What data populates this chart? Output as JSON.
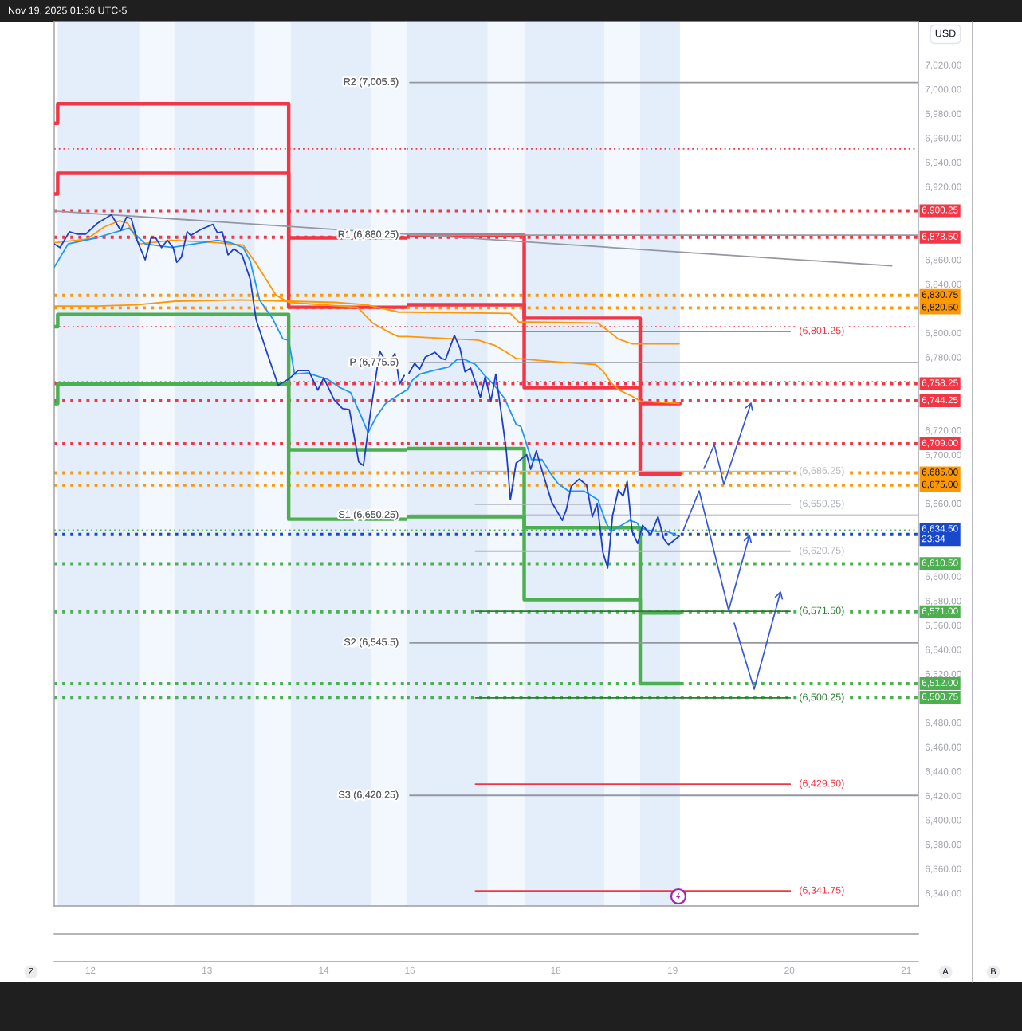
{
  "chart_data": [
    {
      "type": "line",
      "annotations": [
        "Nov 19, 2025 01:36 UTC-5",
        "Z",
        "A",
        "B"
      ],
      "xlim": [
        11.69,
        14.71
      ],
      "xticks": [
        12,
        13,
        14
      ],
      "ylim": [
        6329.5,
        7055.6
      ],
      "tick_labels": "x",
      "series": [
        {
          "color": "#1e3ec8",
          "x": [
            11.69,
            11.74,
            11.82,
            11.89,
            11.96,
            12.06,
            12.18,
            12.26,
            12.31,
            12.35,
            12.4,
            12.47,
            12.52,
            12.56,
            12.61,
            12.66,
            12.71,
            12.74,
            12.78,
            12.83,
            12.86,
            12.95,
            13.05,
            13.09,
            13.13,
            13.18,
            13.23,
            13.3,
            13.37,
            13.42,
            13.52,
            13.61,
            13.7,
            13.78,
            13.87,
            13.95,
            14.0,
            14.09,
            14.16,
            14.22,
            14.3,
            14.34,
            14.4,
            14.48,
            14.55,
            14.61,
            14.65,
            14.69
          ],
          "values": [
            6873,
            6870,
            6883,
            6881,
            6881,
            6890,
            6897,
            6884,
            6895,
            6894,
            6876,
            6860,
            6878,
            6878,
            6870,
            6876,
            6870,
            6858,
            6862,
            6883,
            6880,
            6885,
            6889,
            6882,
            6883,
            6864,
            6869,
            6864,
            6844,
            6811,
            6782,
            6757,
            6762,
            6769,
            6769,
            6753,
            6763,
            6745,
            6738,
            6737,
            6694,
            6691,
            6734,
            6785,
            6774,
            6783,
            6758,
            6765
          ]
        },
        {
          "color": "#2196f3",
          "x": [
            11.69,
            11.81,
            12.05,
            12.33,
            12.47,
            12.7,
            12.89,
            13.09,
            13.2,
            13.31,
            13.37,
            13.45,
            13.56,
            13.65,
            13.7,
            13.75,
            13.86,
            14.03,
            14.14,
            14.23,
            14.31,
            14.38,
            14.45,
            14.53,
            14.64,
            14.71
          ],
          "values": [
            6854,
            6873,
            6878,
            6886,
            6873,
            6870,
            6873,
            6876,
            6874,
            6870,
            6859,
            6827,
            6812,
            6795,
            6794,
            6766,
            6767,
            6762,
            6755,
            6751,
            6734,
            6718,
            6731,
            6742,
            6749,
            6753
          ]
        },
        {
          "color": "#ff9800",
          "x": [
            11.69,
            12.05,
            12.39,
            12.73,
            13.28,
            13.7,
            14.1,
            14.37,
            14.64,
            14.71
          ],
          "values": [
            6822,
            6822,
            6823,
            6826,
            6827,
            6826,
            6825,
            6823,
            6817,
            6817
          ]
        },
        {
          "color": "#ff9800",
          "x": [
            11.69,
            11.97,
            12.12,
            12.25,
            12.32,
            12.42,
            12.7,
            13.09,
            13.31,
            13.42,
            13.59,
            13.7,
            14.29,
            14.42,
            14.57,
            14.64,
            14.71
          ],
          "values": [
            6874,
            6877,
            6887,
            6892,
            6890,
            6873,
            6876,
            6874,
            6872,
            6857,
            6831,
            6825,
            6821,
            6808,
            6800,
            6797,
            6797
          ]
        },
        {
          "type": "step",
          "color": "#f23645",
          "x": [
            11.69,
            11.72,
            13.7,
            14.71
          ],
          "values": [
            6972,
            6988,
            6878,
            6878
          ]
        },
        {
          "type": "step",
          "color": "#f23645",
          "x": [
            11.69,
            11.72,
            13.7,
            14.71
          ],
          "values": [
            6914,
            6931,
            6821,
            6821
          ]
        },
        {
          "type": "step",
          "color": "#4caf50",
          "x": [
            11.69,
            11.72,
            13.7,
            14.71
          ],
          "values": [
            6805,
            6815,
            6704,
            6704
          ]
        },
        {
          "type": "step",
          "color": "#4caf50",
          "x": [
            11.69,
            11.72,
            13.7,
            14.71
          ],
          "values": [
            6742,
            6758,
            6647,
            6647
          ]
        },
        {
          "color": "#9598a1",
          "x": [
            11.69,
            14.71
          ],
          "values": [
            6900,
            6881
          ]
        }
      ],
      "ref_lines": [
        {
          "axis": "y",
          "value": 6951,
          "color": "#f23645",
          "line_style": "dotted"
        },
        {
          "axis": "y",
          "value": 6900.25,
          "color": "#f23645",
          "line_style": "dotted"
        },
        {
          "axis": "y",
          "value": 6878.5,
          "color": "#f23645",
          "line_style": "dotted"
        },
        {
          "axis": "y",
          "value": 6830.75,
          "color": "#ff9800",
          "line_style": "dotted"
        },
        {
          "axis": "y",
          "value": 6820.5,
          "color": "#ff9800",
          "line_style": "dotted"
        },
        {
          "axis": "y",
          "value": 6805,
          "color": "#f23645",
          "line_style": "dotted"
        },
        {
          "axis": "y",
          "value": 6760,
          "color": "#ff9800",
          "line_style": "dotted"
        },
        {
          "axis": "y",
          "value": 6758.25,
          "color": "#f23645",
          "line_style": "dotted"
        },
        {
          "axis": "y",
          "value": 6744.25,
          "color": "#f23645",
          "line_style": "dotted"
        },
        {
          "axis": "y",
          "value": 6709,
          "color": "#f23645",
          "line_style": "dotted"
        },
        {
          "axis": "y",
          "value": 6685,
          "color": "#ff9800",
          "line_style": "dotted"
        },
        {
          "axis": "y",
          "value": 6675,
          "color": "#ff9800",
          "line_style": "dotted"
        },
        {
          "axis": "y",
          "value": 6638,
          "color": "#4caf50",
          "line_style": "dotted"
        },
        {
          "axis": "y",
          "value": 6634.5,
          "color": "#1848cc",
          "line_style": "dotted"
        },
        {
          "axis": "y",
          "value": 6610.5,
          "color": "#4caf50",
          "line_style": "dotted"
        },
        {
          "axis": "y",
          "value": 6571,
          "color": "#4caf50",
          "line_style": "dotted"
        },
        {
          "axis": "y",
          "value": 6512,
          "color": "#4caf50",
          "line_style": "dotted"
        },
        {
          "axis": "y",
          "value": 6500.75,
          "color": "#4caf50",
          "line_style": "dotted"
        }
      ],
      "bands": [
        {
          "axis": "x",
          "from": 11.72,
          "to": 12.42,
          "color": "#e4edfa"
        },
        {
          "axis": "x",
          "from": 12.42,
          "to": 12.72,
          "color": "#f2f8fd"
        },
        {
          "axis": "x",
          "from": 12.72,
          "to": 13.41,
          "color": "#e4edfa"
        },
        {
          "axis": "x",
          "from": 13.41,
          "to": 13.72,
          "color": "#f2f8fd"
        },
        {
          "axis": "x",
          "from": 13.72,
          "to": 14.41,
          "color": "#e4edfa"
        },
        {
          "axis": "x",
          "from": 14.41,
          "to": 14.71,
          "color": "#f2f8fd"
        }
      ]
    },
    {
      "type": "line",
      "ylabel": "USD",
      "xlim": [
        "2025-11-16T17:20",
        "2025-11-21T02:30"
      ],
      "xticks": [
        {
          "value": "2025-11-16T18:00",
          "label": "16"
        },
        {
          "value": "2025-11-18",
          "label": "18"
        },
        {
          "value": "2025-11-19",
          "label": "19"
        },
        {
          "value": "2025-11-20",
          "label": "20"
        },
        {
          "value": "2025-11-21",
          "label": "21"
        }
      ],
      "ylim": [
        6329.5,
        7055.6
      ],
      "yticks": [
        {
          "value": 7020,
          "label": "7,020.00"
        },
        {
          "value": 7000,
          "label": "7,000.00"
        },
        {
          "value": 6980,
          "label": "6,980.00"
        },
        {
          "value": 6960,
          "label": "6,960.00"
        },
        {
          "value": 6940,
          "label": "6,940.00"
        },
        {
          "value": 6920,
          "label": "6,920.00"
        },
        {
          "value": 6860,
          "label": "6,860.00"
        },
        {
          "value": 6840,
          "label": "6,840.00"
        },
        {
          "value": 6800,
          "label": "6,800.00"
        },
        {
          "value": 6780,
          "label": "6,780.00"
        },
        {
          "value": 6720,
          "label": "6,720.00"
        },
        {
          "value": 6700,
          "label": "6,700.00"
        },
        {
          "value": 6660,
          "label": "6,660.00"
        },
        {
          "value": 6600,
          "label": "6,600.00"
        },
        {
          "value": 6580,
          "label": "6,580.00"
        },
        {
          "value": 6560,
          "label": "6,560.00"
        },
        {
          "value": 6540,
          "label": "6,540.00"
        },
        {
          "value": 6520,
          "label": "6,520.00"
        },
        {
          "value": 6480,
          "label": "6,480.00"
        },
        {
          "value": 6460,
          "label": "6,460.00"
        },
        {
          "value": 6440,
          "label": "6,440.00"
        },
        {
          "value": 6420,
          "label": "6,420.00"
        },
        {
          "value": 6400,
          "label": "6,400.00"
        },
        {
          "value": 6380,
          "label": "6,380.00"
        },
        {
          "value": 6360,
          "label": "6,360.00"
        },
        {
          "value": 6340,
          "label": "6,340.00"
        }
      ],
      "series": [
        {
          "color": "#1e3ec8",
          "x": [
            "2025-11-16T17:50",
            "2025-11-16T19:00",
            "2025-11-16T20:00",
            "2025-11-16T21:10",
            "2025-11-16T23:10",
            "2025-11-17T00:30",
            "2025-11-17T01:20",
            "2025-11-17T03:10",
            "2025-11-17T04:20",
            "2025-11-17T05:20",
            "2025-11-17T06:30",
            "2025-11-17T08:30",
            "2025-11-17T09:30",
            "2025-11-17T10:40",
            "2025-11-17T11:40",
            "2025-11-17T12:50",
            "2025-11-17T13:50",
            "2025-11-17T14:40",
            "2025-11-17T15:50",
            "2025-11-17T18:00",
            "2025-11-17T18:50",
            "2025-11-17T20:00",
            "2025-11-17T21:10",
            "2025-11-17T23:10",
            "2025-11-18T01:20",
            "2025-11-18T02:10",
            "2025-11-18T03:10",
            "2025-11-18T04:50",
            "2025-11-18T06:20",
            "2025-11-18T07:30",
            "2025-11-18T08:30",
            "2025-11-18T09:40",
            "2025-11-18T10:40",
            "2025-11-18T11:40",
            "2025-11-18T12:50",
            "2025-11-18T13:50",
            "2025-11-18T14:40",
            "2025-11-18T15:40",
            "2025-11-18T16:50",
            "2025-11-18T17:50",
            "2025-11-18T19:30",
            "2025-11-18T21:00",
            "2025-11-18T22:10",
            "2025-11-18T23:10",
            "2025-11-19T01:20"
          ],
          "values": [
            6767,
            6775,
            6770,
            6780,
            6784,
            6779,
            6778,
            6798,
            6787,
            6768,
            6771,
            6747,
            6764,
            6744,
            6766,
            6733,
            6703,
            6663,
            6693,
            6700,
            6688,
            6703,
            6687,
            6661,
            6646,
            6655,
            6674,
            6680,
            6675,
            6649,
            6660,
            6620,
            6607,
            6650,
            6671,
            6666,
            6678,
            6637,
            6627,
            6642,
            6634,
            6649,
            6631,
            6626,
            6633
          ]
        },
        {
          "color": "#2196f3",
          "x": [
            "2025-11-16T17:30",
            "2025-11-16T18:30",
            "2025-11-16T20:00",
            "2025-11-16T22:50",
            "2025-11-17T02:00",
            "2025-11-17T03:40",
            "2025-11-17T05:20",
            "2025-11-17T07:30",
            "2025-11-17T09:10",
            "2025-11-17T11:20",
            "2025-11-17T13:30",
            "2025-11-17T15:50",
            "2025-11-17T16:50",
            "2025-11-17T19:00",
            "2025-11-17T21:10",
            "2025-11-17T22:50",
            "2025-11-18T00:30",
            "2025-11-18T02:40",
            "2025-11-18T05:50",
            "2025-11-18T08:40",
            "2025-11-18T10:20",
            "2025-11-18T11:20",
            "2025-11-18T13:30",
            "2025-11-18T15:10",
            "2025-11-18T16:40",
            "2025-11-18T17:20",
            "2025-11-18T18:50",
            "2025-11-18T20:40",
            "2025-11-18T22:50",
            "2025-11-19T01:20"
          ],
          "values": [
            6753,
            6761,
            6766,
            6769,
            6772,
            6778,
            6778,
            6774,
            6766,
            6757,
            6746,
            6725,
            6723,
            6696,
            6696,
            6685,
            6676,
            6670,
            6670,
            6663,
            6644,
            6637,
            6642,
            6646,
            6644,
            6640,
            6638,
            6637,
            6637,
            6633
          ]
        },
        {
          "color": "#ff9800",
          "x": [
            "2025-11-16T17:30",
            "2025-11-17T14:40",
            "2025-11-17T16:20",
            "2025-11-18T08:40",
            "2025-11-18T10:20",
            "2025-11-18T12:50",
            "2025-11-18T15:40",
            "2025-11-19T01:20"
          ],
          "values": [
            6817,
            6816,
            6809,
            6808,
            6803,
            6795,
            6791,
            6791
          ]
        },
        {
          "color": "#ff9800",
          "x": [
            "2025-11-16T17:30",
            "2025-11-17T08:00",
            "2025-11-17T11:20",
            "2025-11-17T13:30",
            "2025-11-17T15:50",
            "2025-11-18T00:30",
            "2025-11-18T08:10",
            "2025-11-18T09:50",
            "2025-11-18T11:20",
            "2025-11-18T13:00",
            "2025-11-18T15:40",
            "2025-11-18T17:20",
            "2025-11-19T01:20"
          ],
          "values": [
            6797,
            6794,
            6790,
            6785,
            6779,
            6776,
            6774,
            6768,
            6759,
            6753,
            6748,
            6744,
            6742
          ]
        },
        {
          "type": "step",
          "color": "#f23645",
          "x": [
            "2025-11-16T17:30",
            "2025-11-17T17:30",
            "2025-11-18T17:20",
            "2025-11-19T01:30"
          ],
          "values": [
            6880,
            6812,
            6684,
            6684
          ]
        },
        {
          "type": "step",
          "color": "#f23645",
          "x": [
            "2025-11-16T17:30",
            "2025-11-17T17:30",
            "2025-11-18T17:20",
            "2025-11-19T01:30"
          ],
          "values": [
            6823,
            6755,
            6742,
            6742
          ]
        },
        {
          "type": "step",
          "color": "#4caf50",
          "x": [
            "2025-11-16T17:30",
            "2025-11-17T17:30",
            "2025-11-18T17:20",
            "2025-11-19T01:30"
          ],
          "values": [
            6705,
            6640,
            6570,
            6570
          ]
        },
        {
          "type": "step",
          "color": "#4caf50",
          "x": [
            "2025-11-16T17:30",
            "2025-11-17T17:30",
            "2025-11-18T17:20",
            "2025-11-19T01:30"
          ],
          "values": [
            6649,
            6581,
            6512,
            6512
          ]
        },
        {
          "name": "R2 (7,005.5)",
          "color": "#9598a1",
          "x": [
            "2025-11-16T18:00",
            "2025-11-21T02:30"
          ],
          "values": [
            7005.5,
            7005.5
          ]
        },
        {
          "name": "R1 (6,880.25)",
          "color": "#9598a1",
          "x": [
            "2025-11-16T18:00",
            "2025-11-21T02:30"
          ],
          "values": [
            6880.25,
            6880.25
          ]
        },
        {
          "name": "P (6,775.5)",
          "color": "#9598a1",
          "x": [
            "2025-11-16T18:00",
            "2025-11-21T02:30"
          ],
          "values": [
            6775.5,
            6775.5
          ]
        },
        {
          "name": "S1 (6,650.25)",
          "color": "#9598a1",
          "x": [
            "2025-11-16T18:00",
            "2025-11-21T02:30"
          ],
          "values": [
            6650.25,
            6650.25
          ]
        },
        {
          "name": "S2 (6,545.5)",
          "color": "#9598a1",
          "x": [
            "2025-11-16T18:00",
            "2025-11-21T02:30"
          ],
          "values": [
            6545.5,
            6545.5
          ]
        },
        {
          "name": "S3 (6,420.25)",
          "color": "#9598a1",
          "x": [
            "2025-11-16T18:00",
            "2025-11-21T02:30"
          ],
          "values": [
            6420.25,
            6420.25
          ]
        },
        {
          "name": "(6,801.25)",
          "color": "#f23645",
          "x": [
            "2025-11-17T07:30",
            "2025-11-20T00:10"
          ],
          "values": [
            6801.25,
            6801.25
          ]
        },
        {
          "name": "(6,686.25)",
          "color": "#b8bbc3",
          "x": [
            "2025-11-17T07:30",
            "2025-11-20T00:10"
          ],
          "values": [
            6686.25,
            6686.25
          ]
        },
        {
          "name": "(6,659.25)",
          "color": "#b2b5be",
          "x": [
            "2025-11-17T07:30",
            "2025-11-20T00:10"
          ],
          "values": [
            6659.25,
            6659.25
          ]
        },
        {
          "name": "(6,620.75)",
          "color": "#b2b5be",
          "x": [
            "2025-11-17T07:30",
            "2025-11-20T00:10"
          ],
          "values": [
            6620.75,
            6620.75
          ]
        },
        {
          "name": "(6,571.50)",
          "color": "#2e7d32",
          "x": [
            "2025-11-17T07:30",
            "2025-11-20T00:10"
          ],
          "values": [
            6571.5,
            6571.5
          ]
        },
        {
          "name": "(6,500.25)",
          "color": "#2e7d32",
          "x": [
            "2025-11-17T07:30",
            "2025-11-20T00:10"
          ],
          "values": [
            6500.25,
            6500.25
          ]
        },
        {
          "name": "(6,429.50)",
          "color": "#f23645",
          "x": [
            "2025-11-17T07:30",
            "2025-11-20T00:10"
          ],
          "values": [
            6429.5,
            6429.5
          ]
        },
        {
          "name": "(6,341.75)",
          "color": "#f23645",
          "x": [
            "2025-11-17T07:30",
            "2025-11-20T00:10"
          ],
          "values": [
            6341.75,
            6341.75
          ]
        },
        {
          "color": "#9598a1",
          "x": [
            "2025-11-16T17:30",
            "2025-11-20T21:00"
          ],
          "values": [
            6881,
            6855
          ]
        }
      ],
      "ref_lines": [
        {
          "axis": "y",
          "value": 6951,
          "color": "#f23645",
          "line_style": "dotted"
        },
        {
          "axis": "y",
          "value": 6900.25,
          "label": "6,900.25",
          "color": "#f23645",
          "line_style": "dotted"
        },
        {
          "axis": "y",
          "value": 6878.5,
          "label": "6,878.50",
          "color": "#f23645",
          "line_style": "dotted"
        },
        {
          "axis": "y",
          "value": 6830.75,
          "label": "6,830.75",
          "color": "#ff9800",
          "line_style": "dotted"
        },
        {
          "axis": "y",
          "value": 6820.5,
          "label": "6,820.50",
          "color": "#ff9800",
          "line_style": "dotted"
        },
        {
          "axis": "y",
          "value": 6805,
          "color": "#f23645",
          "line_style": "dotted"
        },
        {
          "axis": "y",
          "value": 6760,
          "color": "#ff9800",
          "line_style": "dotted"
        },
        {
          "axis": "y",
          "value": 6758.25,
          "label": "6,758.25",
          "color": "#f23645",
          "line_style": "dotted"
        },
        {
          "axis": "y",
          "value": 6744.25,
          "label": "6,744.25",
          "color": "#f23645",
          "line_style": "dotted"
        },
        {
          "axis": "y",
          "value": 6709,
          "label": "6,709.00",
          "color": "#f23645",
          "line_style": "dotted"
        },
        {
          "axis": "y",
          "value": 6685,
          "label": "6,685.00",
          "color": "#ff9800",
          "line_style": "dotted"
        },
        {
          "axis": "y",
          "value": 6675,
          "label": "6,675.00",
          "color": "#ff9800",
          "line_style": "dotted"
        },
        {
          "axis": "y",
          "value": 6638,
          "color": "#4caf50",
          "line_style": "dotted"
        },
        {
          "axis": "y",
          "value": 6634.5,
          "label": "6,634.50\n23:34",
          "color": "#1848cc",
          "line_style": "dotted"
        },
        {
          "axis": "y",
          "value": 6610.5,
          "label": "6,610.50",
          "color": "#4caf50",
          "line_style": "dotted"
        },
        {
          "axis": "y",
          "value": 6571,
          "label": "6,571.00",
          "color": "#4caf50",
          "line_style": "dotted"
        },
        {
          "axis": "y",
          "value": 6512,
          "label": "6,512.00",
          "color": "#4caf50",
          "line_style": "dotted"
        },
        {
          "axis": "y",
          "value": 6500.75,
          "label": "6,500.75",
          "color": "#4caf50",
          "line_style": "dotted"
        }
      ],
      "bands": [
        {
          "axis": "x",
          "from": "2025-11-16T17:20",
          "to": "2025-11-17T10:00",
          "color": "#e4edfa"
        },
        {
          "axis": "x",
          "from": "2025-11-17T10:00",
          "to": "2025-11-17T17:40",
          "color": "#f2f8fd"
        },
        {
          "axis": "x",
          "from": "2025-11-17T17:40",
          "to": "2025-11-18T10:00",
          "color": "#e4edfa"
        },
        {
          "axis": "x",
          "from": "2025-11-18T10:00",
          "to": "2025-11-18T17:20",
          "color": "#f2f8fd"
        },
        {
          "axis": "x",
          "from": "2025-11-18T17:20",
          "to": "2025-11-19T01:30",
          "color": "#e4edfa"
        }
      ]
    }
  ]
}
